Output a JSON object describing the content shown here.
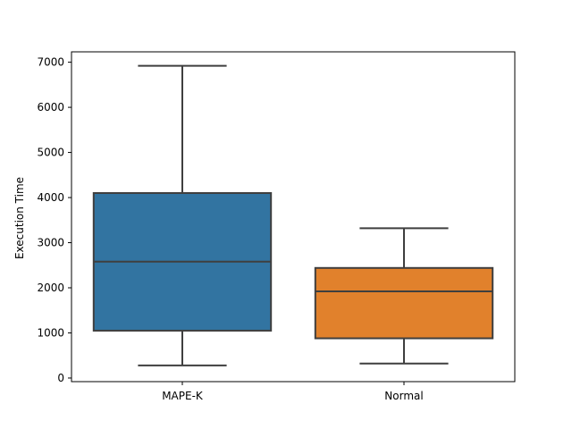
{
  "chart_data": {
    "type": "box",
    "title": "",
    "xlabel": "",
    "ylabel": "Execution Time",
    "ylim": [
      -80,
      7230
    ],
    "yticks": [
      0,
      1000,
      2000,
      3000,
      4000,
      5000,
      6000,
      7000
    ],
    "ytick_labels": [
      "0",
      "1000",
      "2000",
      "3000",
      "4000",
      "5000",
      "6000",
      "7000"
    ],
    "grid": false,
    "legend": "none",
    "categories": [
      "MAPE-K",
      "Normal"
    ],
    "boxes": [
      {
        "category": "MAPE-K",
        "whisker_low": 280,
        "q1": 1050,
        "median": 2580,
        "q3": 4100,
        "whisker_high": 6920,
        "color": "#3274a1"
      },
      {
        "category": "Normal",
        "whisker_low": 320,
        "q1": 880,
        "median": 1920,
        "q3": 2440,
        "whisker_high": 3320,
        "color": "#e1812c"
      }
    ],
    "line_color": "#3f3f3f"
  }
}
